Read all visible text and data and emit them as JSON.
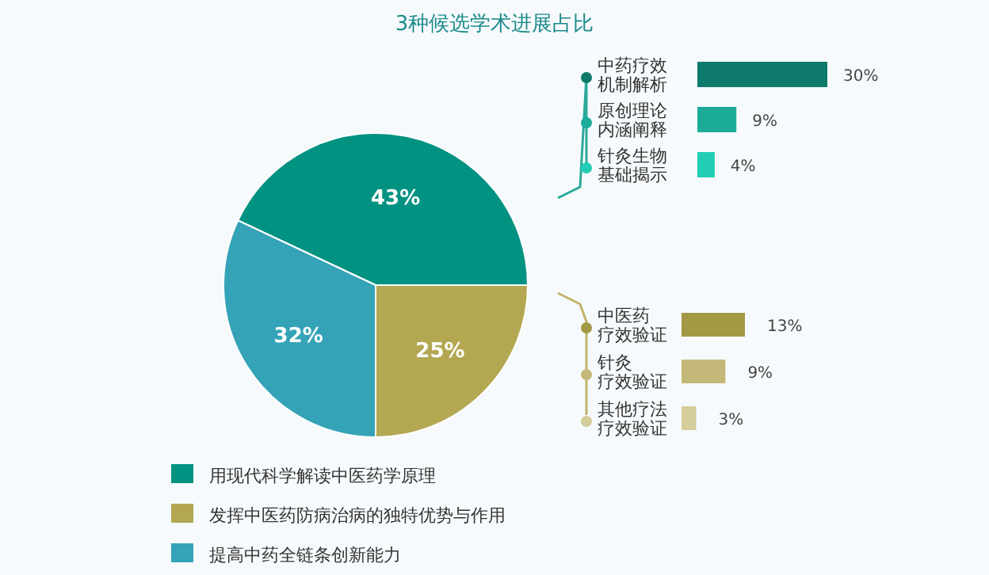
{
  "chart_data": [
    {
      "type": "pie",
      "title": "3种候选学术进展占比",
      "categories": [
        "用现代科学解读中医药学原理",
        "发挥中医药防病治病的独特优势与作用",
        "提高中药全链条创新能力"
      ],
      "values": [
        43,
        25,
        32
      ],
      "value_labels": [
        "43%",
        "25%",
        "32%"
      ],
      "colors": [
        "#019282",
        "#b3a752",
        "#35a3b7"
      ],
      "legend": "bottom left"
    },
    {
      "type": "bar",
      "orientation": "horizontal",
      "categories": [
        "中药疗效机制解析",
        "原创理论内涵阐释",
        "针灸生物基础揭示"
      ],
      "values": [
        30,
        9,
        4
      ],
      "value_labels": [
        "30%",
        "9%",
        "4%"
      ],
      "colors": [
        "#0e7a6b",
        "#1aab99",
        "#22cdb6"
      ]
    },
    {
      "type": "bar",
      "orientation": "horizontal",
      "categories": [
        "中医药疗效验证",
        "针灸疗效验证",
        "其他疗法疗效验证"
      ],
      "values": [
        13,
        9,
        3
      ],
      "value_labels": [
        "13%",
        "9%",
        "3%"
      ],
      "colors": [
        "#a39843",
        "#c4b878",
        "#d4cc9a"
      ]
    }
  ]
}
